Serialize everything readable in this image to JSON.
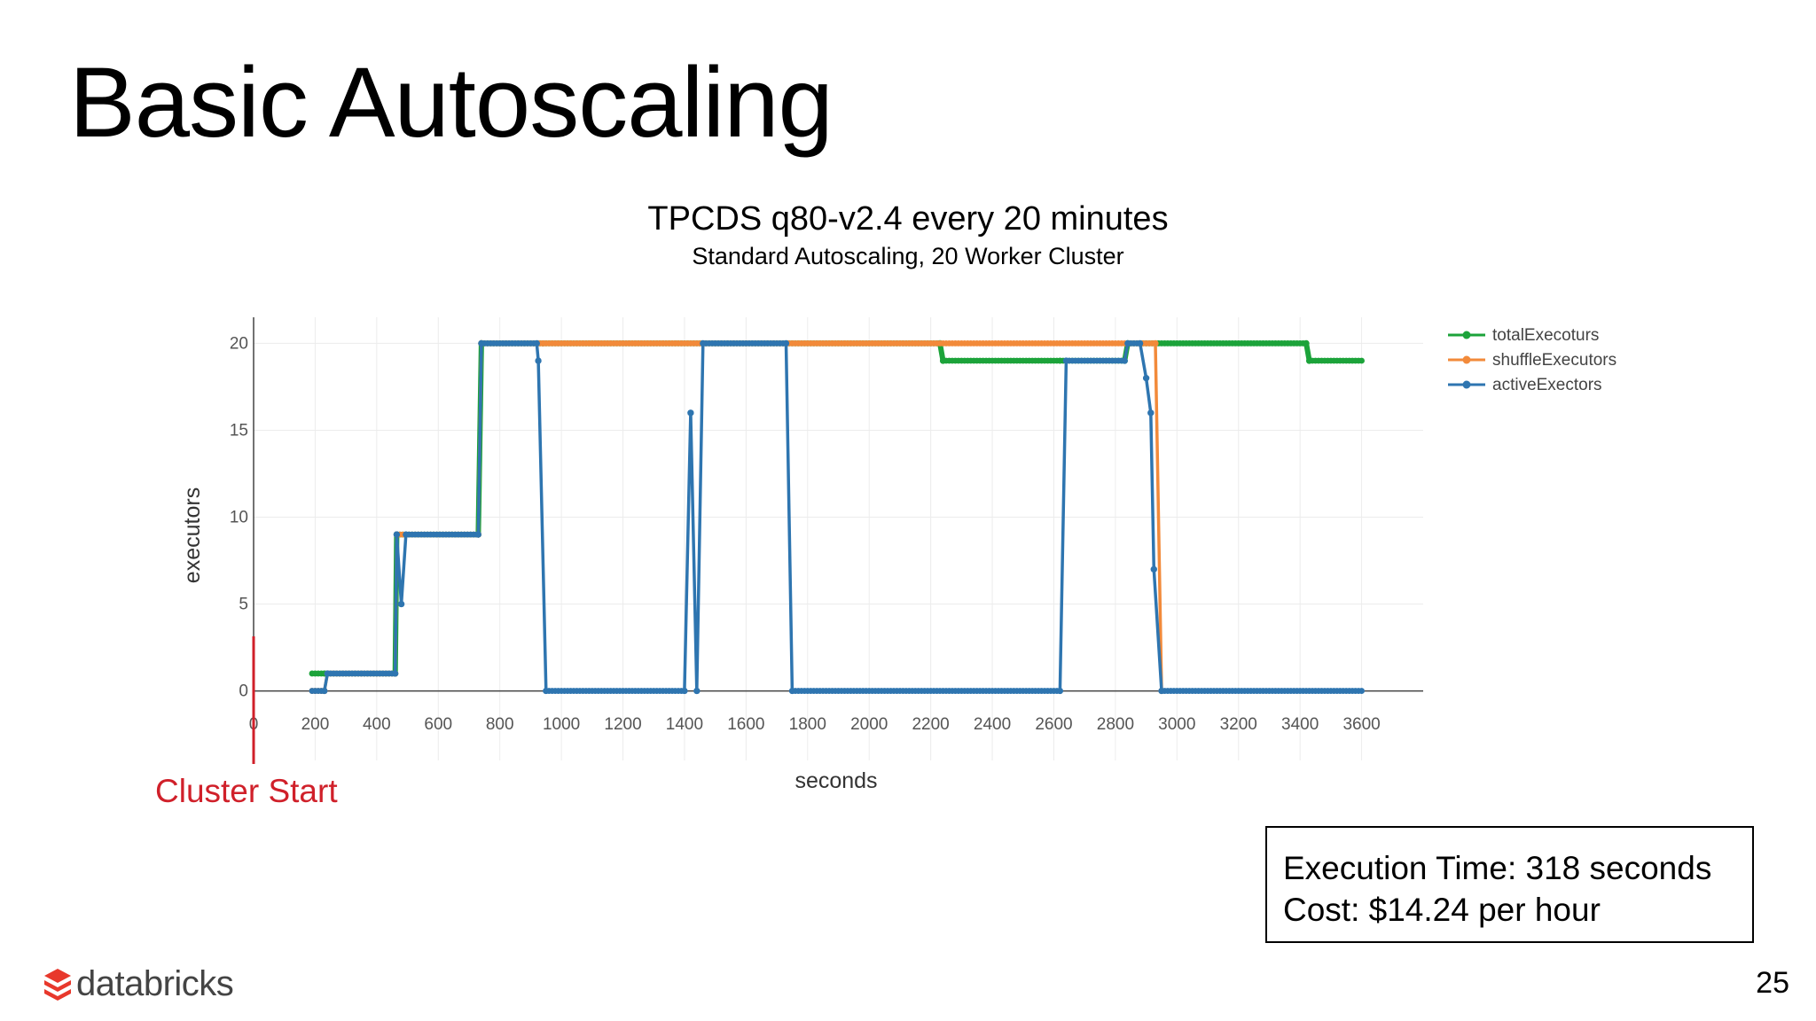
{
  "slide": {
    "title": "Basic Autoscaling",
    "page_number": "25",
    "brand": "databricks",
    "brand_icon": "databricks-logo-icon",
    "annotation": {
      "text": "Cluster Start",
      "color": "#d0202a"
    },
    "info_box": {
      "line1": "Execution Time: 318 seconds",
      "line2": "Cost: $14.24 per hour"
    }
  },
  "chart_data": {
    "type": "line",
    "title": "TPCDS q80-v2.4 every 20 minutes",
    "subtitle": "Standard Autoscaling, 20 Worker Cluster",
    "xlabel": "seconds",
    "ylabel": "executors",
    "xlim": [
      0,
      3800
    ],
    "ylim": [
      -4,
      21.5
    ],
    "xticks": [
      0,
      200,
      400,
      600,
      800,
      1000,
      1200,
      1400,
      1600,
      1800,
      2000,
      2200,
      2400,
      2600,
      2800,
      3000,
      3200,
      3400,
      3600
    ],
    "yticks": [
      0,
      5,
      10,
      15,
      20
    ],
    "grid": true,
    "legend": "top-right",
    "series": [
      {
        "name": "totalExecoturs",
        "color": "#1ca33a",
        "x": [
          190,
          230,
          240,
          460,
          465,
          730,
          740,
          940,
          2230,
          2240,
          2620,
          2830,
          2840,
          2880,
          3420,
          3430,
          3600
        ],
        "y": [
          1,
          1,
          1,
          1,
          9,
          9,
          20,
          20,
          20,
          19,
          19,
          19,
          20,
          20,
          20,
          19,
          19
        ]
      },
      {
        "name": "shuffleExecutors",
        "color": "#f28a3a",
        "x": [
          190,
          230,
          240,
          460,
          465,
          730,
          740,
          940,
          2880,
          2930,
          2950
        ],
        "y": [
          0,
          0,
          1,
          1,
          9,
          9,
          20,
          20,
          20,
          20,
          0
        ]
      },
      {
        "name": "activeExectors",
        "color": "#2e75b0",
        "x": [
          190,
          230,
          240,
          460,
          465,
          480,
          495,
          730,
          740,
          920,
          925,
          950,
          1400,
          1420,
          1440,
          1460,
          1730,
          1750,
          2620,
          2640,
          2830,
          2840,
          2880,
          2900,
          2915,
          2925,
          2950,
          3600
        ],
        "y": [
          0,
          0,
          1,
          1,
          9,
          5,
          9,
          9,
          20,
          20,
          19,
          0,
          0,
          16,
          0,
          20,
          20,
          0,
          0,
          19,
          19,
          20,
          20,
          18,
          16,
          7,
          0,
          0
        ]
      }
    ]
  }
}
